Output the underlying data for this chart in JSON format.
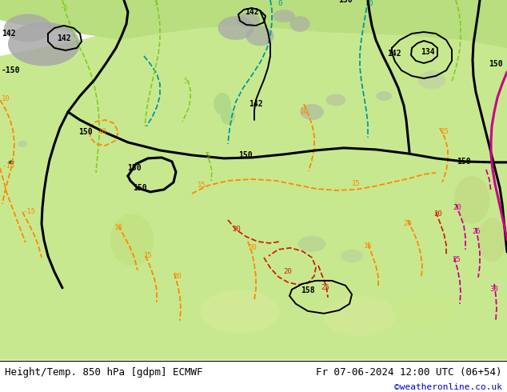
{
  "title_left": "Height/Temp. 850 hPa [gdpm] ECMWF",
  "title_right": "Fr 07-06-2024 12:00 UTC (06+54)",
  "credit": "©weatheronline.co.uk",
  "fig_width": 6.34,
  "fig_height": 4.9,
  "dpi": 100,
  "title_fontsize": 9,
  "credit_fontsize": 8,
  "credit_color": "#0000cc",
  "bg_gray": "#d0d0d0",
  "bg_green": "#c8e89a",
  "bg_light_green": "#d8f0a8"
}
